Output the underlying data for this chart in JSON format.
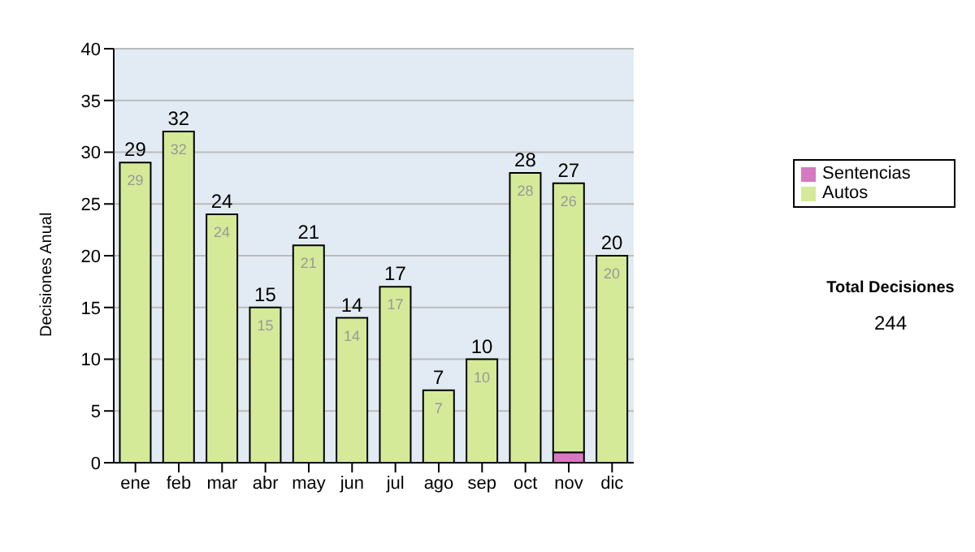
{
  "chart_data": {
    "type": "bar",
    "stacked": true,
    "ylabel": "Decisiones Anual",
    "categories": [
      "ene",
      "feb",
      "mar",
      "abr",
      "may",
      "jun",
      "jul",
      "ago",
      "sep",
      "oct",
      "nov",
      "dic"
    ],
    "series": [
      {
        "name": "Sentencias",
        "color": "#d878c0",
        "values": [
          0,
          0,
          0,
          0,
          0,
          0,
          0,
          0,
          0,
          0,
          1,
          0
        ]
      },
      {
        "name": "Autos",
        "color": "#d4ea98",
        "values": [
          29,
          32,
          24,
          15,
          21,
          14,
          17,
          7,
          10,
          28,
          26,
          20
        ],
        "value_labels": [
          "29",
          "32",
          "24",
          "15",
          "21",
          "14",
          "17",
          "7",
          "10",
          "28",
          "26",
          "20"
        ]
      }
    ],
    "totals": [
      "29",
      "32",
      "24",
      "15",
      "21",
      "14",
      "17",
      "7",
      "10",
      "28",
      "27",
      "20"
    ],
    "ylim": [
      0,
      40
    ],
    "yticks": [
      0,
      5,
      10,
      15,
      20,
      25,
      30,
      35,
      40
    ],
    "grid": "y",
    "legend": "right",
    "annotations": [
      "Total Decisiones",
      "244"
    ]
  }
}
